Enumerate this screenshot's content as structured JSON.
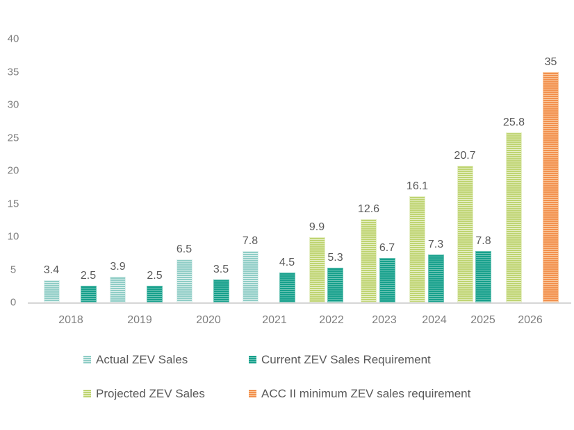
{
  "chart_data": {
    "type": "bar",
    "categories": [
      "2018",
      "2019",
      "2020",
      "2021",
      "2022",
      "2023",
      "2024",
      "2025",
      "2026"
    ],
    "series": [
      {
        "id": "actual",
        "name": "Actual ZEV Sales",
        "color": "#8FCDC6",
        "stripe_color": "#DFF1EE",
        "values": [
          3.4,
          3.9,
          6.5,
          7.8,
          null,
          null,
          null,
          null,
          null
        ]
      },
      {
        "id": "current",
        "name": "Current ZEV Sales Requirement",
        "color": "#17A08C",
        "stripe_color": "#6AC4B5",
        "values": [
          2.5,
          2.5,
          3.5,
          4.5,
          5.3,
          6.7,
          7.3,
          7.8,
          null
        ]
      },
      {
        "id": "projected",
        "name": "Projected ZEV Sales",
        "color": "#BFD472",
        "stripe_color": "#E7F0C8",
        "values": [
          null,
          null,
          null,
          null,
          9.9,
          12.6,
          16.1,
          20.7,
          25.8
        ]
      },
      {
        "id": "accii",
        "name": "ACC II minimum ZEV sales requirement",
        "color": "#F2914E",
        "stripe_color": "#FAC89E",
        "values": [
          null,
          null,
          null,
          null,
          null,
          null,
          null,
          null,
          35
        ]
      }
    ],
    "xlabel": "",
    "ylabel": "",
    "ylim": [
      0,
      40
    ],
    "yticks": [
      0,
      5,
      10,
      15,
      20,
      25,
      30,
      35,
      40
    ],
    "grid": false,
    "legend_position": "bottom",
    "value_labels": true
  },
  "colors": {
    "background": "#FFFFFF",
    "axis_line": "#D6D6D6",
    "tick_label": "#7F7F7F",
    "value_label": "#595959",
    "legend_text": "#595959"
  }
}
